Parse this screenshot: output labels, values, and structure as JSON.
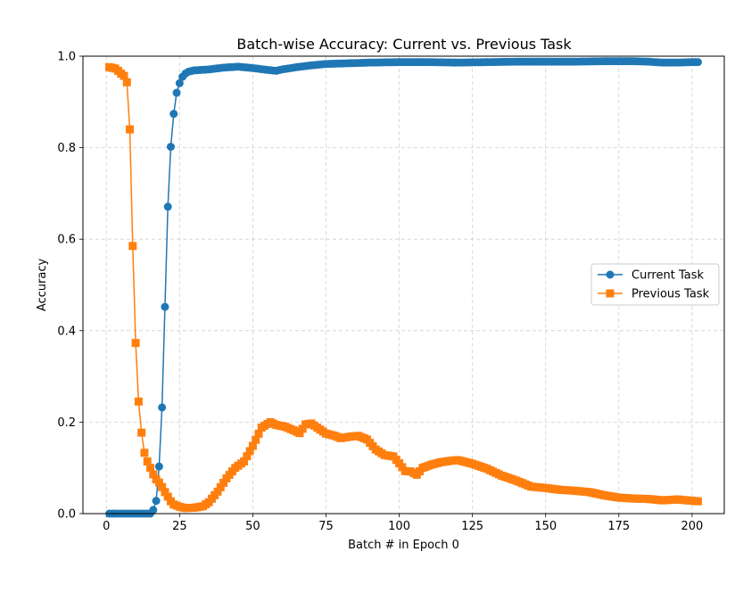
{
  "chart_data": {
    "type": "line",
    "title": "Batch-wise Accuracy: Current vs. Previous Task",
    "xlabel": "Batch # in Epoch 0",
    "ylabel": "Accuracy",
    "xlim": [
      -8.0,
      211.0
    ],
    "ylim": [
      0.0,
      1.0
    ],
    "xticks": [
      0,
      25,
      50,
      75,
      100,
      125,
      150,
      175,
      200
    ],
    "yticks": [
      0.0,
      0.2,
      0.4,
      0.6,
      0.8,
      1.0
    ],
    "xtick_labels": [
      "0",
      "25",
      "50",
      "75",
      "100",
      "125",
      "150",
      "175",
      "200"
    ],
    "ytick_labels": [
      "0.0",
      "0.2",
      "0.4",
      "0.6",
      "0.8",
      "1.0"
    ],
    "grid": true,
    "legend_position": "center right",
    "series": [
      {
        "name": "Current Task",
        "color": "#1f77b4",
        "marker": "circle",
        "keypoints": [
          [
            1,
            0.0
          ],
          [
            15,
            0.0
          ],
          [
            16,
            0.008
          ],
          [
            17,
            0.028
          ],
          [
            18,
            0.103
          ],
          [
            19,
            0.232
          ],
          [
            20,
            0.452
          ],
          [
            21,
            0.671
          ],
          [
            22,
            0.802
          ],
          [
            23,
            0.874
          ],
          [
            24,
            0.92
          ],
          [
            25,
            0.941
          ],
          [
            26,
            0.955
          ],
          [
            27,
            0.962
          ],
          [
            28,
            0.966
          ],
          [
            30,
            0.969
          ],
          [
            35,
            0.971
          ],
          [
            40,
            0.975
          ],
          [
            45,
            0.977
          ],
          [
            50,
            0.974
          ],
          [
            55,
            0.97
          ],
          [
            58,
            0.968
          ],
          [
            60,
            0.971
          ],
          [
            65,
            0.976
          ],
          [
            70,
            0.98
          ],
          [
            75,
            0.983
          ],
          [
            80,
            0.984
          ],
          [
            90,
            0.986
          ],
          [
            100,
            0.987
          ],
          [
            110,
            0.987
          ],
          [
            120,
            0.986
          ],
          [
            130,
            0.987
          ],
          [
            140,
            0.988
          ],
          [
            150,
            0.988
          ],
          [
            160,
            0.988
          ],
          [
            170,
            0.989
          ],
          [
            180,
            0.989
          ],
          [
            185,
            0.988
          ],
          [
            190,
            0.986
          ],
          [
            195,
            0.986
          ],
          [
            200,
            0.987
          ],
          [
            202,
            0.987
          ]
        ]
      },
      {
        "name": "Previous Task",
        "color": "#ff7f0e",
        "marker": "square",
        "keypoints": [
          [
            1,
            0.976
          ],
          [
            3,
            0.973
          ],
          [
            4,
            0.968
          ],
          [
            5,
            0.962
          ],
          [
            6,
            0.957
          ],
          [
            7,
            0.943
          ],
          [
            8,
            0.84
          ],
          [
            9,
            0.585
          ],
          [
            10,
            0.373
          ],
          [
            11,
            0.245
          ],
          [
            12,
            0.177
          ],
          [
            13,
            0.133
          ],
          [
            14,
            0.114
          ],
          [
            15,
            0.1
          ],
          [
            16,
            0.086
          ],
          [
            17,
            0.075
          ],
          [
            18,
            0.068
          ],
          [
            19,
            0.058
          ],
          [
            20,
            0.047
          ],
          [
            21,
            0.037
          ],
          [
            22,
            0.027
          ],
          [
            23,
            0.02
          ],
          [
            25,
            0.015
          ],
          [
            27,
            0.012
          ],
          [
            30,
            0.013
          ],
          [
            33,
            0.016
          ],
          [
            35,
            0.025
          ],
          [
            38,
            0.048
          ],
          [
            41,
            0.077
          ],
          [
            44,
            0.1
          ],
          [
            47,
            0.114
          ],
          [
            50,
            0.148
          ],
          [
            53,
            0.188
          ],
          [
            56,
            0.2
          ],
          [
            58,
            0.194
          ],
          [
            61,
            0.19
          ],
          [
            64,
            0.182
          ],
          [
            66,
            0.176
          ],
          [
            68,
            0.195
          ],
          [
            70,
            0.197
          ],
          [
            72,
            0.188
          ],
          [
            75,
            0.175
          ],
          [
            78,
            0.17
          ],
          [
            80,
            0.165
          ],
          [
            83,
            0.168
          ],
          [
            86,
            0.17
          ],
          [
            89,
            0.162
          ],
          [
            92,
            0.14
          ],
          [
            95,
            0.128
          ],
          [
            98,
            0.125
          ],
          [
            100,
            0.11
          ],
          [
            102,
            0.093
          ],
          [
            104,
            0.092
          ],
          [
            106,
            0.085
          ],
          [
            108,
            0.1
          ],
          [
            111,
            0.107
          ],
          [
            114,
            0.112
          ],
          [
            117,
            0.115
          ],
          [
            120,
            0.117
          ],
          [
            125,
            0.109
          ],
          [
            130,
            0.098
          ],
          [
            135,
            0.083
          ],
          [
            140,
            0.072
          ],
          [
            145,
            0.059
          ],
          [
            150,
            0.056
          ],
          [
            155,
            0.052
          ],
          [
            160,
            0.05
          ],
          [
            165,
            0.047
          ],
          [
            170,
            0.04
          ],
          [
            175,
            0.035
          ],
          [
            180,
            0.033
          ],
          [
            185,
            0.032
          ],
          [
            190,
            0.029
          ],
          [
            195,
            0.031
          ],
          [
            200,
            0.028
          ],
          [
            202,
            0.027
          ]
        ]
      }
    ]
  }
}
